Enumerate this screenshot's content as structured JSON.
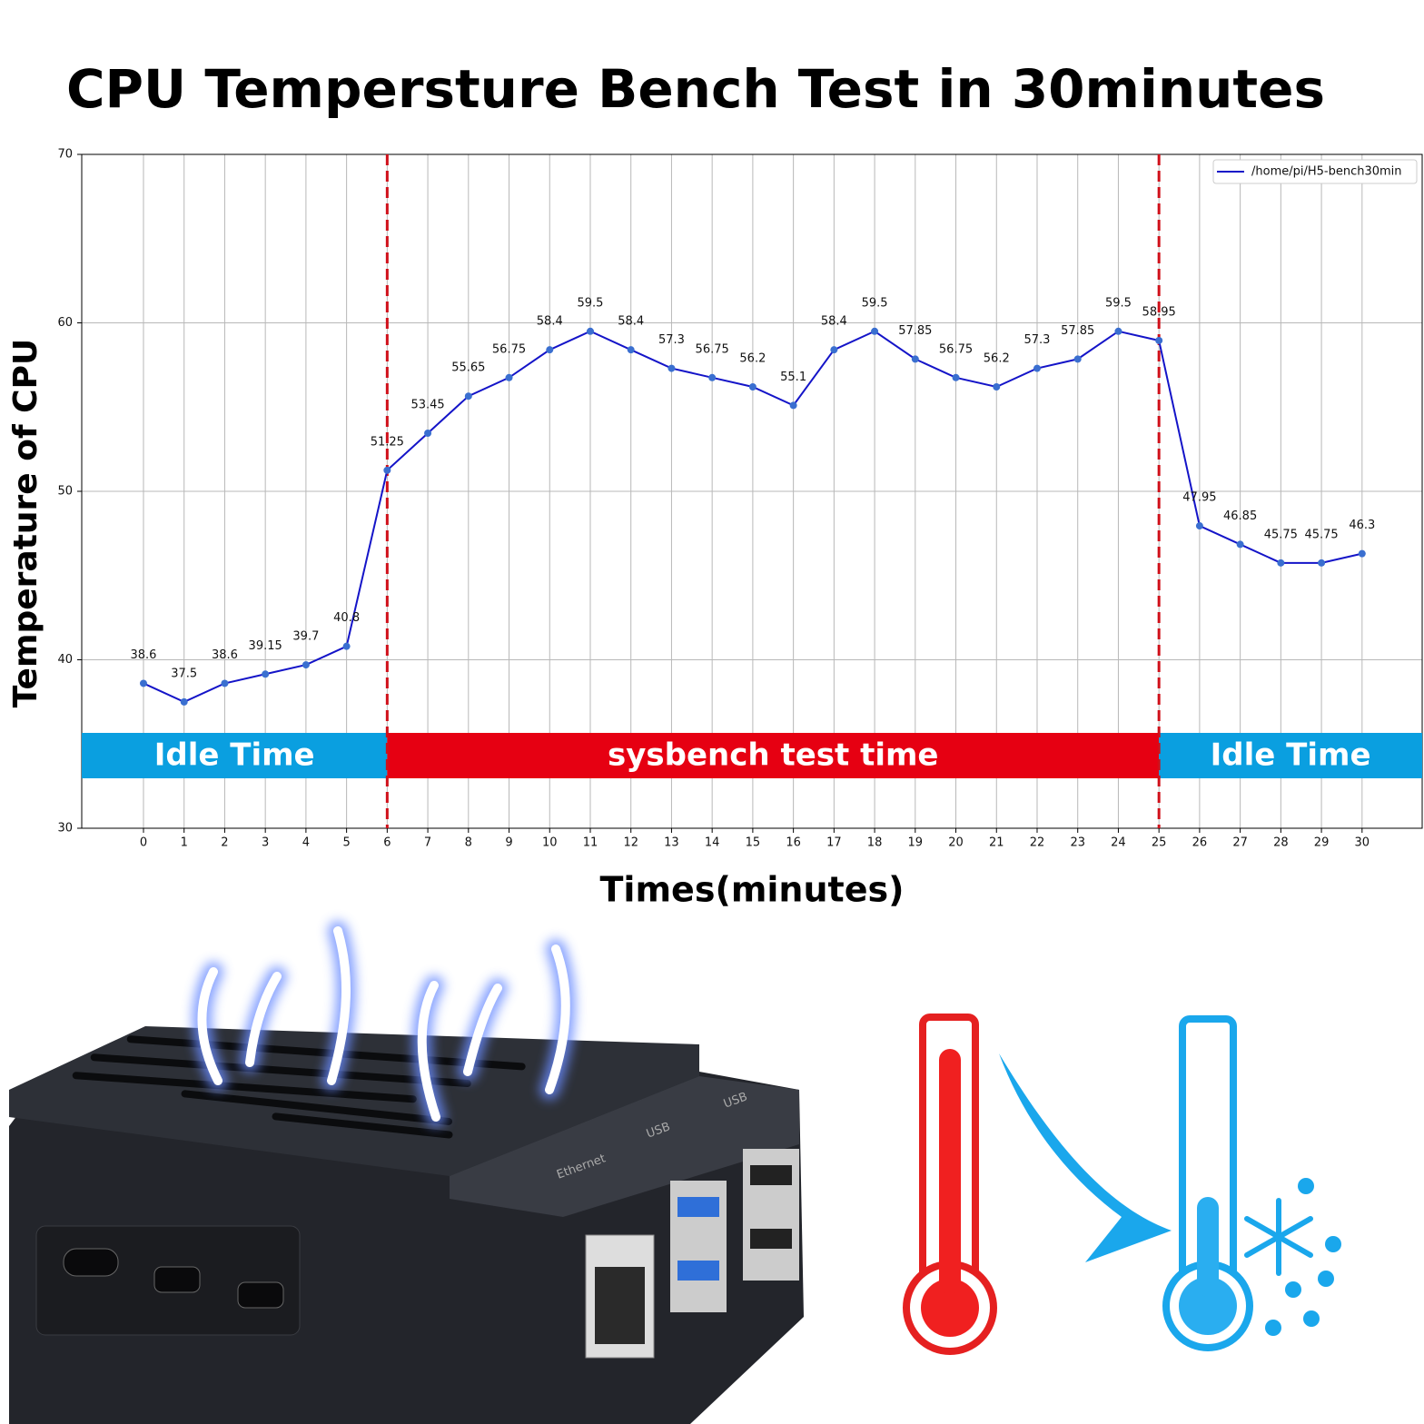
{
  "chart_data": {
    "type": "line",
    "title": "CPU Tempersture Bench Test in 30minutes",
    "y_label": "Temperature of CPU",
    "x_label": "Times(minutes)",
    "x": [
      0,
      1,
      2,
      3,
      4,
      5,
      6,
      7,
      8,
      9,
      10,
      11,
      12,
      13,
      14,
      15,
      16,
      17,
      18,
      19,
      20,
      21,
      22,
      23,
      24,
      25,
      26,
      27,
      28,
      29,
      30
    ],
    "series": [
      {
        "name": "/home/pi/H5-bench30min",
        "color": "#1414c8",
        "marker_color": "#3a6fd0",
        "values": [
          38.6,
          37.5,
          38.6,
          39.15,
          39.7,
          40.8,
          51.25,
          53.45,
          55.65,
          56.75,
          58.4,
          59.5,
          58.4,
          57.3,
          56.75,
          56.2,
          55.1,
          58.4,
          59.5,
          57.85,
          56.75,
          56.2,
          57.3,
          57.85,
          59.5,
          58.95,
          47.95,
          46.85,
          45.75,
          45.75,
          46.3
        ]
      }
    ],
    "xlim": [
      -1.52,
      31.48
    ],
    "ylim": [
      30,
      70
    ],
    "xticks": [
      0,
      1,
      2,
      3,
      4,
      5,
      6,
      7,
      8,
      9,
      10,
      11,
      12,
      13,
      14,
      15,
      16,
      17,
      18,
      19,
      20,
      21,
      22,
      23,
      24,
      25,
      26,
      27,
      28,
      29,
      30
    ],
    "yticks": [
      30,
      40,
      50,
      60,
      70
    ],
    "grid": true,
    "legend": "upper right",
    "phase_boundaries": [
      6,
      25
    ],
    "boundary_color": "#d0101a",
    "phases": [
      {
        "label": "Idle Time",
        "color": "#0a9fe0"
      },
      {
        "label": "sysbench test time",
        "color": "#e60012"
      },
      {
        "label": "Idle Time",
        "color": "#0a9fe0"
      }
    ]
  },
  "illustration": {
    "port_labels": [
      "Ethernet",
      "USB",
      "USB"
    ]
  }
}
